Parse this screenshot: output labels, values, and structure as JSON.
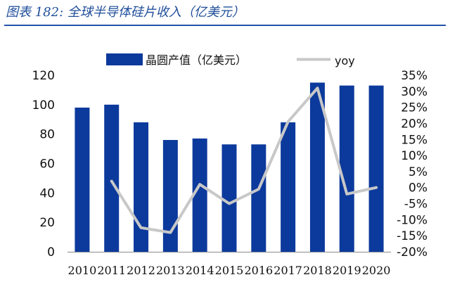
{
  "figure": {
    "title": "图表 182: 全球半导体硅片收入（亿美元）"
  },
  "chart_data": {
    "type": "bar+line",
    "categories": [
      "2010",
      "2011",
      "2012",
      "2013",
      "2014",
      "2015",
      "2016",
      "2017",
      "2018",
      "2019",
      "2020"
    ],
    "series": [
      {
        "name": "晶圆产值（亿美元）",
        "type": "bar",
        "axis": "left",
        "values": [
          98,
          100,
          88,
          76,
          77,
          73,
          73,
          88,
          115,
          113,
          113
        ]
      },
      {
        "name": "yoy",
        "type": "line",
        "axis": "right",
        "values": [
          null,
          2.0,
          -12.5,
          -14.0,
          1.0,
          -5.0,
          -0.5,
          20.5,
          31.0,
          -2.0,
          0.0
        ]
      }
    ],
    "left_axis": {
      "min": 0,
      "max": 120,
      "ticks": [
        "0",
        "20",
        "40",
        "60",
        "80",
        "100",
        "120"
      ]
    },
    "right_axis": {
      "min": -20,
      "max": 35,
      "ticks": [
        "-20%",
        "-15%",
        "-10%",
        "-5%",
        "0%",
        "5%",
        "10%",
        "15%",
        "20%",
        "25%",
        "30%",
        "35%"
      ]
    },
    "legend_position": "top",
    "grid": false,
    "colors": {
      "bar": "#0c3a9c",
      "line": "#c8c8c8",
      "title": "#1f4e9a"
    }
  }
}
